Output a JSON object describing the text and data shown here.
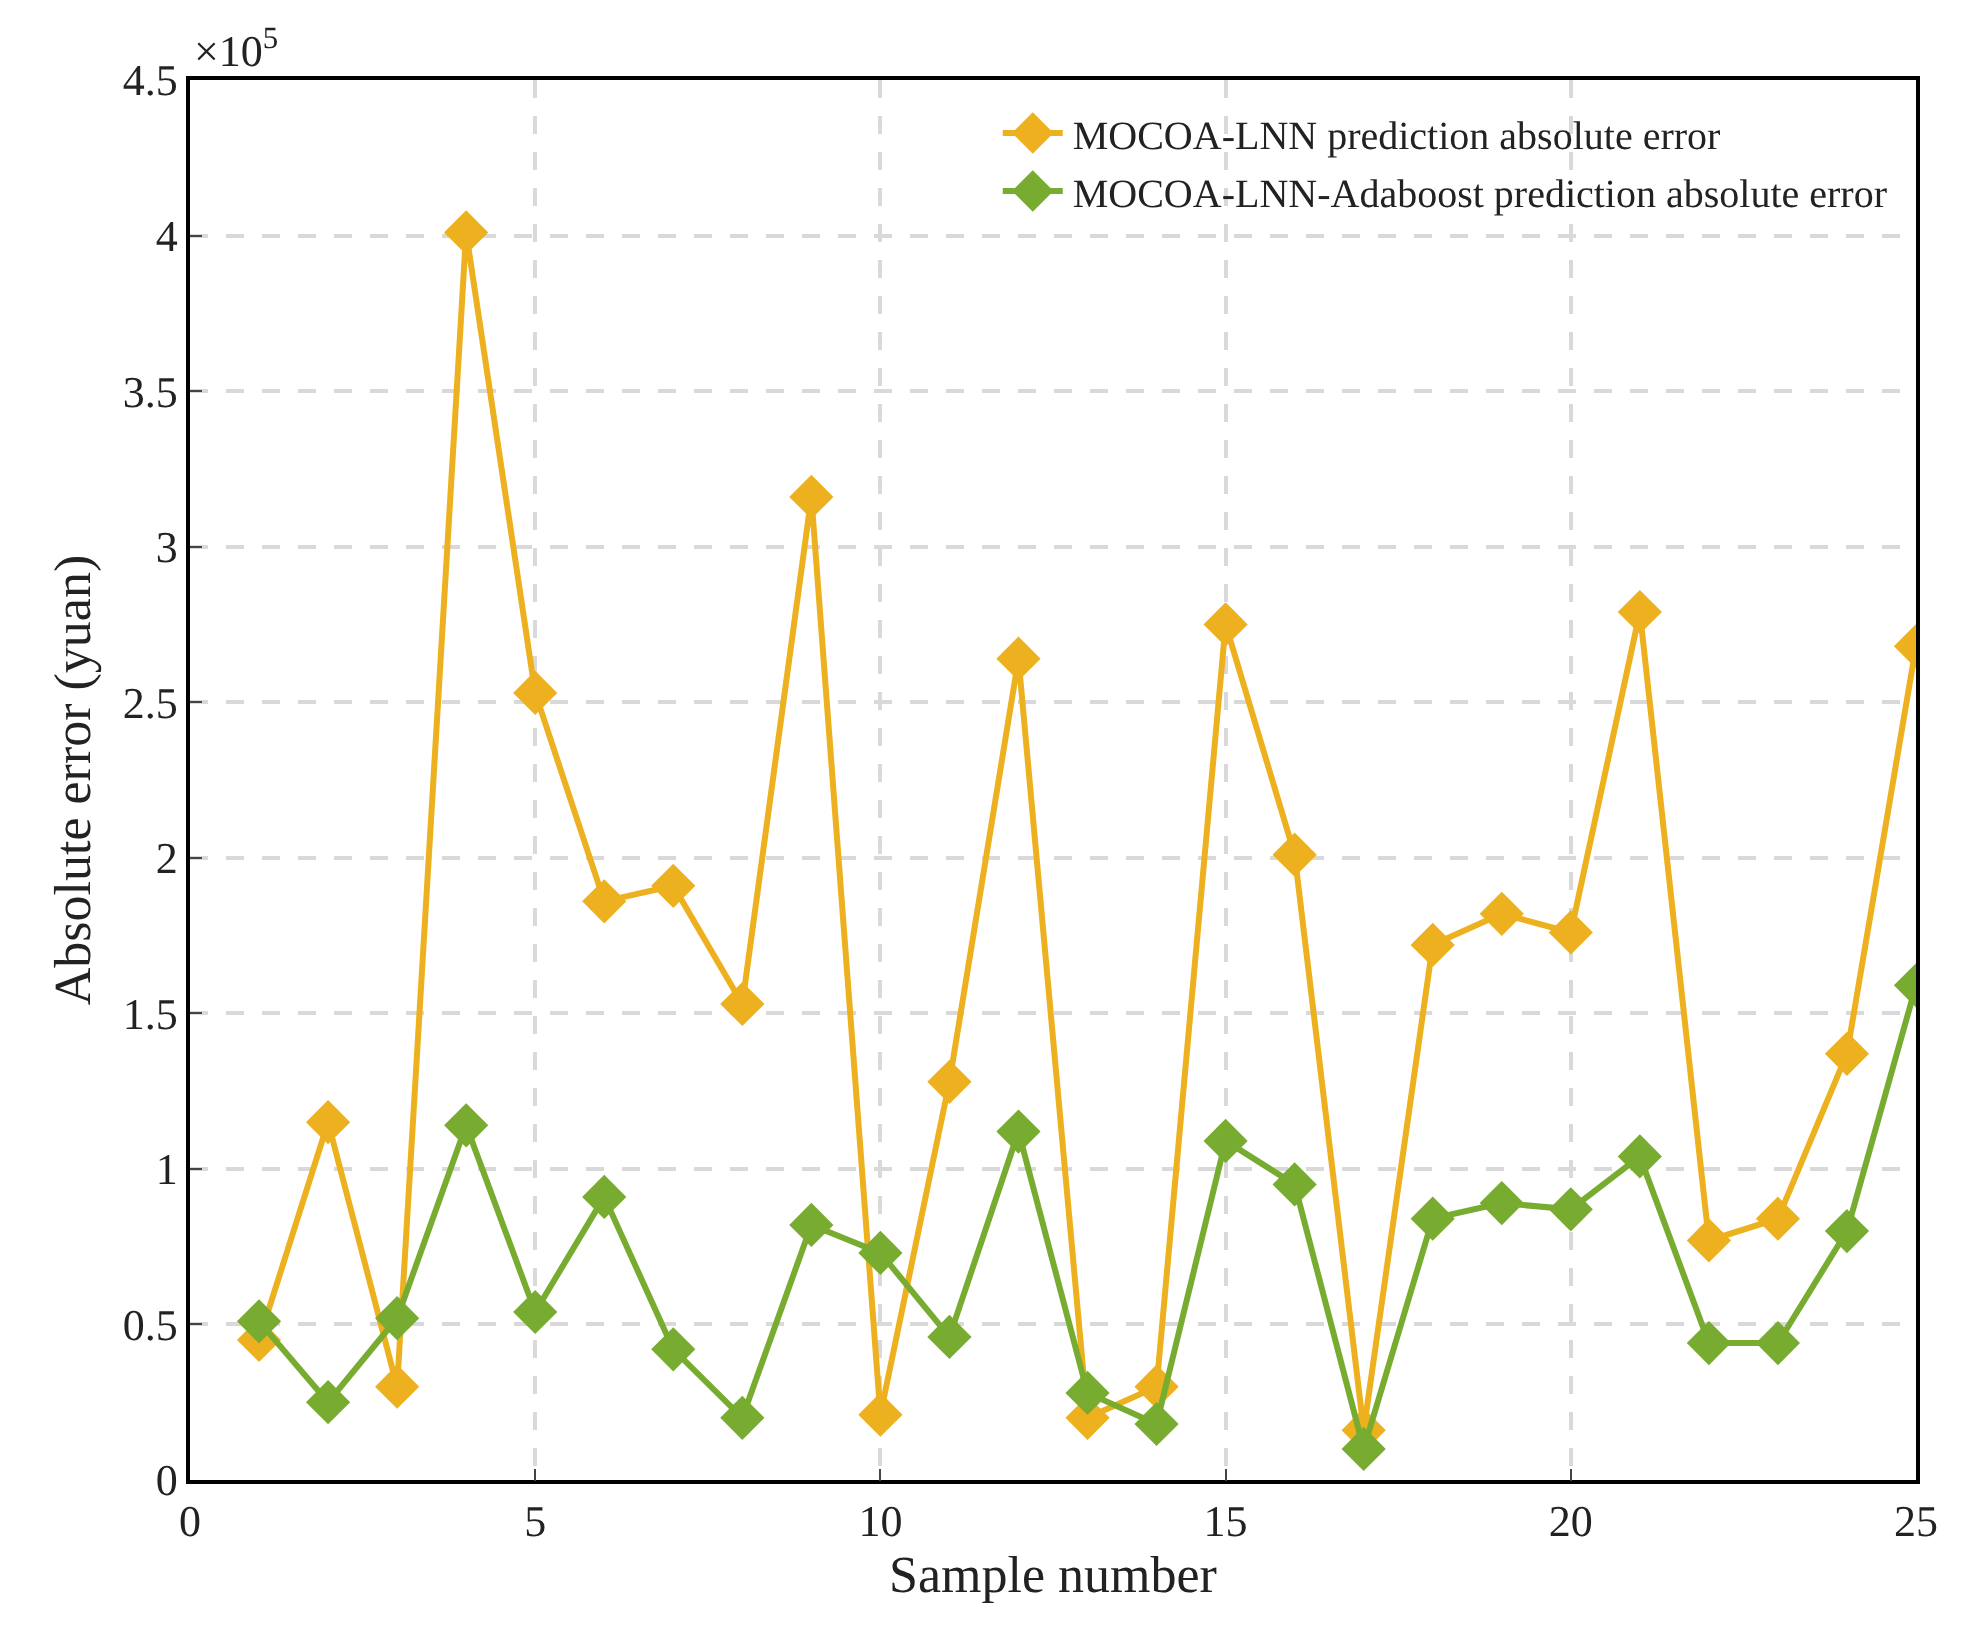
{
  "chart_data": {
    "type": "line",
    "xlabel": "Sample number",
    "ylabel": "Absolute error (yuan)",
    "annotations": [
      "×10$^{5}$"
    ],
    "x": [
      1,
      2,
      3,
      4,
      5,
      6,
      7,
      8,
      9,
      10,
      11,
      12,
      13,
      14,
      15,
      16,
      17,
      18,
      19,
      20,
      21,
      22,
      23,
      24,
      25
    ],
    "series": [
      {
        "name": "MOCOA-LNN prediction absolute error",
        "color": "#edb120",
        "values": [
          0.45,
          1.15,
          0.3,
          4.01,
          2.53,
          1.86,
          1.91,
          1.53,
          3.16,
          0.21,
          1.28,
          2.64,
          0.2,
          0.3,
          2.75,
          2.01,
          0.16,
          1.72,
          1.82,
          1.76,
          2.79,
          0.77,
          0.84,
          1.37,
          2.68
        ]
      },
      {
        "name": "MOCOA-LNN-Adaboost prediction absolute error",
        "color": "#77ac30",
        "values": [
          0.51,
          0.25,
          0.52,
          1.14,
          0.54,
          0.91,
          0.42,
          0.2,
          0.82,
          0.73,
          0.46,
          1.12,
          0.28,
          0.18,
          1.09,
          0.95,
          0.1,
          0.84,
          0.89,
          0.87,
          1.04,
          0.44,
          0.44,
          0.8,
          1.59
        ]
      }
    ],
    "xlim": [
      0,
      25
    ],
    "xticks": [
      0,
      5,
      10,
      15,
      20,
      25
    ],
    "ylim": [
      0,
      4.5
    ],
    "yticks": [
      0,
      0.5,
      1,
      1.5,
      2,
      2.5,
      3,
      3.5,
      4,
      4.5
    ],
    "grid": true,
    "legend": "top right",
    "marker": "diamond",
    "line_style": "solid"
  }
}
